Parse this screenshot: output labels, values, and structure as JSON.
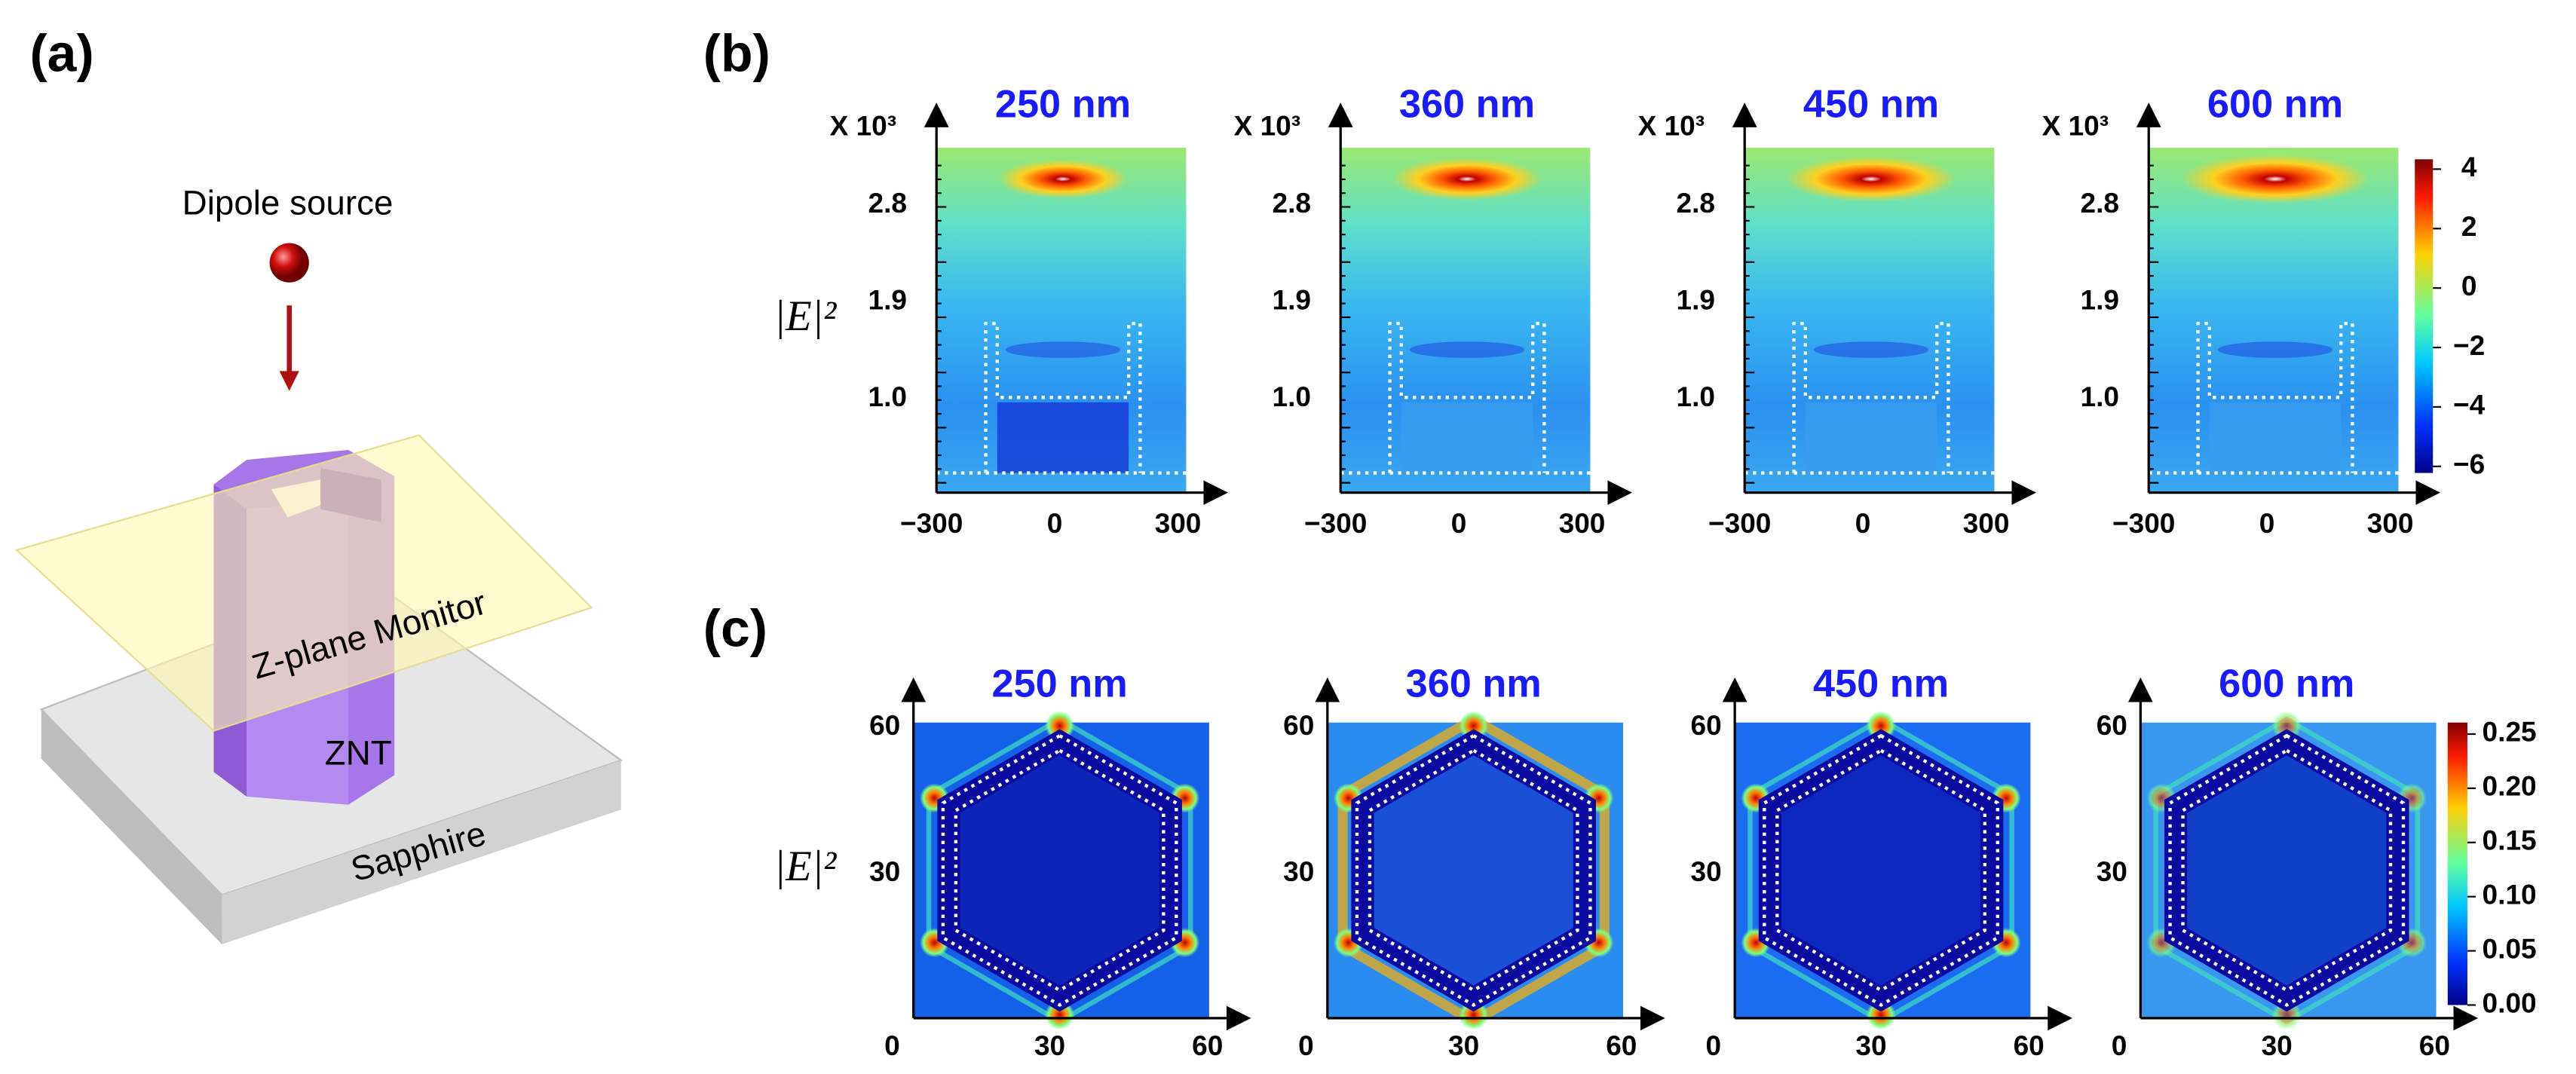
{
  "panels": {
    "a": {
      "label": "(a)",
      "source": "Dipole source",
      "monitor": "Z-plane Monitor",
      "tube": "ZNT",
      "substrate": "Sapphire"
    },
    "b": {
      "label": "(b)",
      "y_label": "|E|²",
      "scale_note": "X 10³",
      "maps": [
        {
          "title": "250 nm"
        },
        {
          "title": "360 nm"
        },
        {
          "title": "450 nm"
        },
        {
          "title": "600 nm"
        }
      ],
      "yticks": [
        "2.8",
        "1.9",
        "1.0"
      ],
      "xticks": [
        "−300",
        "0",
        "300"
      ],
      "colorbar_ticks": [
        "4",
        "2",
        "0",
        "−2",
        "−4",
        "−6"
      ]
    },
    "c": {
      "label": "(c)",
      "y_label": "|E|²",
      "maps": [
        {
          "title": "250 nm"
        },
        {
          "title": "360 nm"
        },
        {
          "title": "450 nm"
        },
        {
          "title": "600 nm"
        }
      ],
      "yticks": [
        "60",
        "30"
      ],
      "xticks": [
        "0",
        "30",
        "60"
      ],
      "colorbar_ticks": [
        "0.25",
        "0.20",
        "0.15",
        "0.10",
        "0.05",
        "0.00"
      ]
    }
  }
}
